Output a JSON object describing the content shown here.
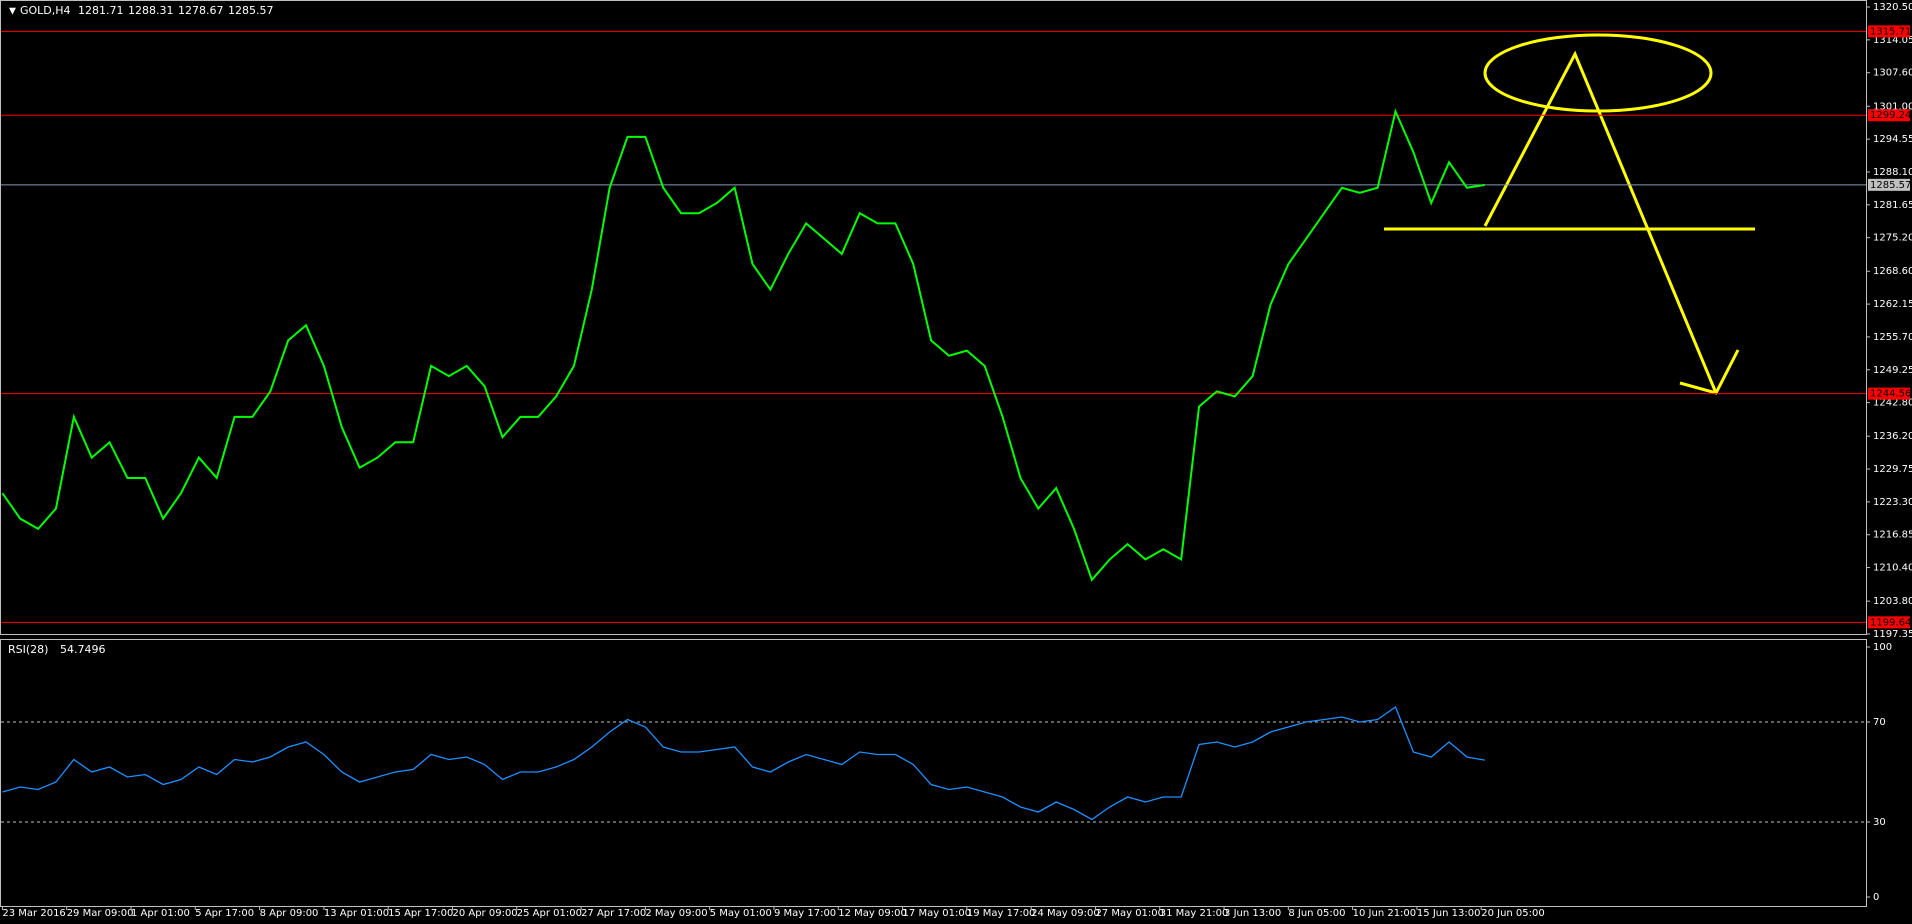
{
  "chart_data": [
    {
      "type": "line",
      "symbol": "GOLD,H4",
      "ohlc": [
        1281.71,
        1288.31,
        1278.67,
        1285.57
      ],
      "color": "#00ff00",
      "x": [
        0,
        1,
        2,
        3,
        4,
        5,
        6,
        7,
        8,
        9,
        10,
        11,
        12,
        13,
        14,
        15,
        16,
        17,
        18,
        19,
        20,
        21,
        22,
        23,
        24,
        25,
        26,
        27,
        28,
        29,
        30,
        31,
        32,
        33,
        34,
        35,
        36,
        37,
        38,
        39,
        40,
        41,
        42,
        43,
        44,
        45,
        46,
        47,
        48,
        49,
        50,
        51,
        52,
        53,
        54,
        55,
        56,
        57,
        58,
        59,
        60,
        61,
        62,
        63,
        64,
        65,
        66,
        67,
        68,
        69,
        70,
        71,
        72,
        73,
        74,
        75,
        76,
        77,
        78,
        79,
        80,
        81,
        82,
        83
      ],
      "values": [
        1225,
        1220,
        1218,
        1222,
        1240,
        1232,
        1235,
        1228,
        1228,
        1220,
        1225,
        1232,
        1228,
        1240,
        1240,
        1245,
        1255,
        1258,
        1250,
        1238,
        1230,
        1232,
        1235,
        1235,
        1250,
        1248,
        1250,
        1246,
        1236,
        1240,
        1240,
        1244,
        1250,
        1265,
        1285,
        1295,
        1295,
        1285,
        1280,
        1280,
        1282,
        1285,
        1270,
        1265,
        1272,
        1278,
        1275,
        1272,
        1280,
        1278,
        1278,
        1270,
        1255,
        1252,
        1253,
        1250,
        1240,
        1228,
        1222,
        1226,
        1218,
        1208,
        1212,
        1215,
        1212,
        1214,
        1212,
        1242,
        1245,
        1244,
        1248,
        1262,
        1270,
        1275,
        1280,
        1285,
        1284,
        1285,
        1300,
        1292,
        1282,
        1290,
        1285,
        1285.57
      ],
      "xlim": [
        0,
        104.4
      ],
      "ylim": [
        1197.35,
        1320.5
      ],
      "yticks": [
        {
          "value": 1320.5,
          "label": "1320.50"
        },
        1314.05,
        {
          "value": 1307.6,
          "label": "1307.60"
        },
        {
          "value": 1301,
          "label": "1301.00"
        },
        1294.55,
        {
          "value": 1288.1,
          "label": "1288.10"
        },
        1281.65,
        {
          "value": 1275.2,
          "label": "1275.20"
        },
        {
          "value": 1268.6,
          "label": "1268.60"
        },
        1262.15,
        {
          "value": 1255.7,
          "label": "1255.70"
        },
        1249.25,
        {
          "value": 1242.8,
          "label": "1242.80"
        },
        {
          "value": 1236.2,
          "label": "1236.20"
        },
        1229.75,
        {
          "value": 1223.3,
          "label": "1223.30"
        },
        1216.85,
        {
          "value": 1210.4,
          "label": "1210.40"
        },
        {
          "value": 1203.8,
          "label": "1203.80"
        },
        1197.35
      ],
      "levels": [
        1315.71,
        1299.24,
        1244.56,
        1199.64
      ],
      "level_color": "#ff0000",
      "current_price": 1285.57,
      "current_color": "#7f9db9"
    },
    {
      "type": "line",
      "name": "RSI(28)",
      "last": 54.7496,
      "color": "#1e90ff",
      "x": [
        0,
        1,
        2,
        3,
        4,
        5,
        6,
        7,
        8,
        9,
        10,
        11,
        12,
        13,
        14,
        15,
        16,
        17,
        18,
        19,
        20,
        21,
        22,
        23,
        24,
        25,
        26,
        27,
        28,
        29,
        30,
        31,
        32,
        33,
        34,
        35,
        36,
        37,
        38,
        39,
        40,
        41,
        42,
        43,
        44,
        45,
        46,
        47,
        48,
        49,
        50,
        51,
        52,
        53,
        54,
        55,
        56,
        57,
        58,
        59,
        60,
        61,
        62,
        63,
        64,
        65,
        66,
        67,
        68,
        69,
        70,
        71,
        72,
        73,
        74,
        75,
        76,
        77,
        78,
        79,
        80,
        81,
        82,
        83
      ],
      "values": [
        42,
        44,
        43,
        46,
        55,
        50,
        52,
        48,
        49,
        45,
        47,
        52,
        49,
        55,
        54,
        56,
        60,
        62,
        57,
        50,
        46,
        48,
        50,
        51,
        57,
        55,
        56,
        53,
        47,
        50,
        50,
        52,
        55,
        60,
        66,
        71,
        68,
        60,
        58,
        58,
        59,
        60,
        52,
        50,
        54,
        57,
        55,
        53,
        58,
        57,
        57,
        53,
        45,
        43,
        44,
        42,
        40,
        36,
        34,
        38,
        35,
        31,
        36,
        40,
        38,
        40,
        40,
        61,
        62,
        60,
        62,
        66,
        68,
        70,
        71,
        72,
        70,
        71,
        76,
        58,
        56,
        62,
        56,
        54.7496
      ],
      "xlim": [
        0,
        104.4
      ],
      "ylim": [
        0,
        100
      ],
      "yticks": [
        100,
        70,
        30,
        0
      ],
      "levels": [
        70,
        30
      ],
      "xticks": [
        {
          "value": 0,
          "label": "23 Mar 2016"
        },
        {
          "value": 3.6,
          "label": "29 Mar 09:00"
        },
        {
          "value": 7.2,
          "label": "1 Apr 01:00"
        },
        {
          "value": 10.8,
          "label": "5 Apr 17:00"
        },
        {
          "value": 14.4,
          "label": "8 Apr 09:00"
        },
        {
          "value": 18,
          "label": "13 Apr 01:00"
        },
        {
          "value": 21.6,
          "label": "15 Apr 17:00"
        },
        {
          "value": 25.2,
          "label": "20 Apr 09:00"
        },
        {
          "value": 28.8,
          "label": "25 Apr 01:00"
        },
        {
          "value": 32.4,
          "label": "27 Apr 17:00"
        },
        {
          "value": 36,
          "label": "2 May 09:00"
        },
        {
          "value": 39.6,
          "label": "5 May 01:00"
        },
        {
          "value": 43.2,
          "label": "9 May 17:00"
        },
        {
          "value": 46.8,
          "label": "12 May 09:00"
        },
        {
          "value": 50.4,
          "label": "17 May 01:00"
        },
        {
          "value": 54,
          "label": "19 May 17:00"
        },
        {
          "value": 57.6,
          "label": "24 May 09:00"
        },
        {
          "value": 61.2,
          "label": "27 May 01:00"
        },
        {
          "value": 64.8,
          "label": "31 May 21:00"
        },
        {
          "value": 68.4,
          "label": "3 Jun 13:00"
        },
        {
          "value": 72,
          "label": "8 Jun 05:00"
        },
        {
          "value": 75.6,
          "label": "10 Jun 21:00"
        },
        {
          "value": 79.2,
          "label": "15 Jun 13:00"
        },
        {
          "value": 82.8,
          "label": "20 Jun 05:00"
        }
      ]
    }
  ]
}
